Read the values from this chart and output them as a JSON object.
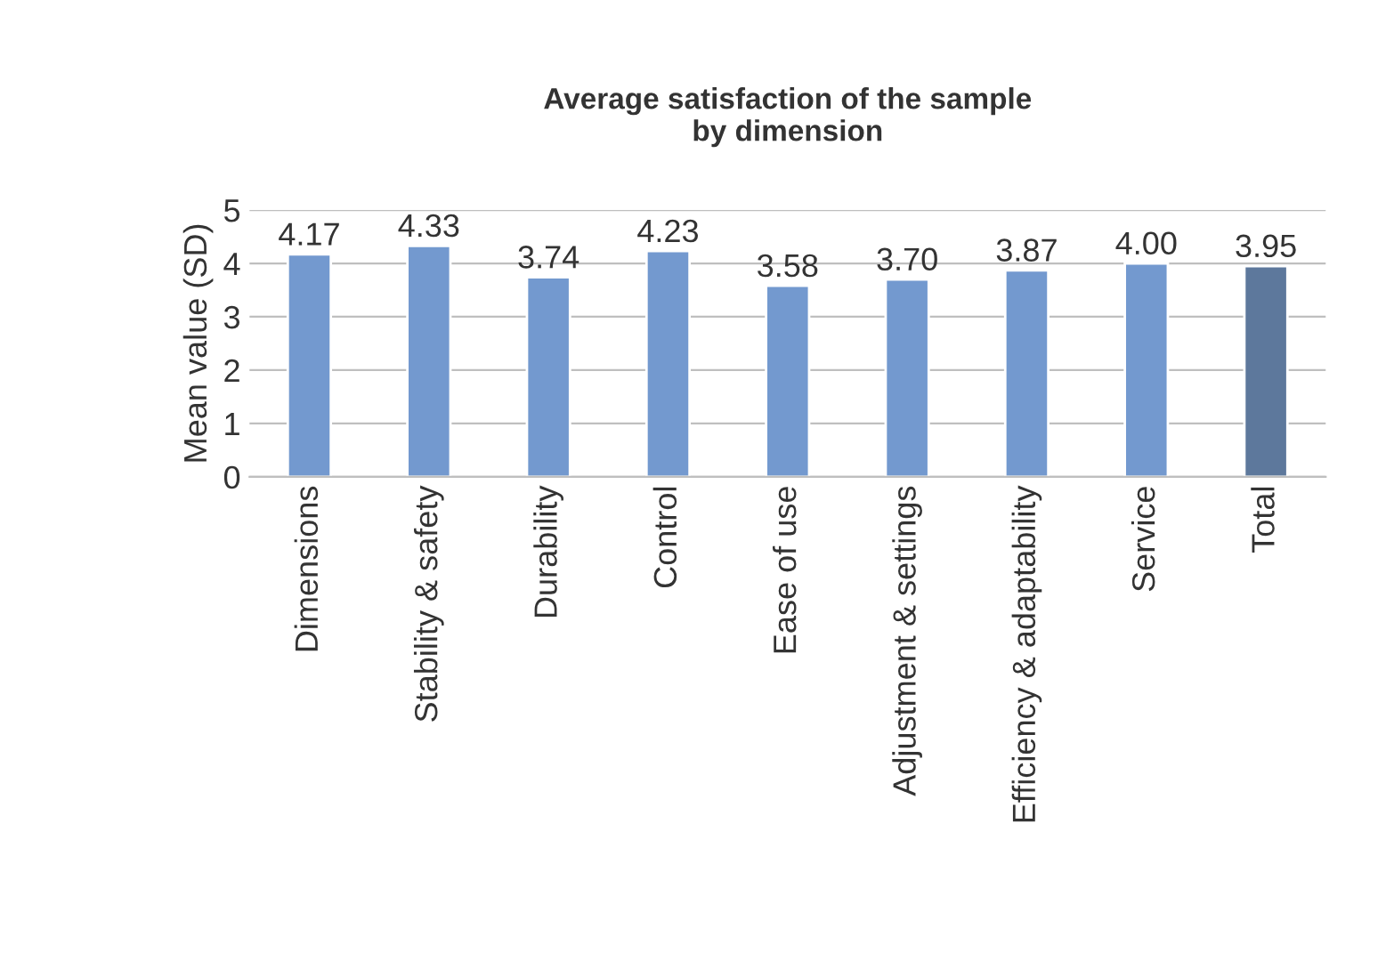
{
  "chart_data": {
    "type": "bar",
    "title": "Average satisfaction of the sample\nby dimension",
    "ylabel": "Mean value (SD)",
    "categories": [
      "Dimensions",
      "Stability & safety",
      "Durability",
      "Control",
      "Ease of use",
      "Adjustment & settings",
      "Efficiency & adaptability",
      "Service",
      "Total"
    ],
    "values": [
      4.17,
      4.33,
      3.74,
      4.23,
      3.58,
      3.7,
      3.87,
      4.0,
      3.95
    ],
    "value_labels": [
      "4.17",
      "4.33",
      "3.74",
      "4.23",
      "3.58",
      "3.70",
      "3.87",
      "4.00",
      "3.95"
    ],
    "colors": [
      "#7399cf",
      "#7399cf",
      "#7399cf",
      "#7399cf",
      "#7399cf",
      "#7399cf",
      "#7399cf",
      "#7399cf",
      "#5d789c"
    ],
    "ylim": [
      0,
      5
    ],
    "yticks": [
      0,
      1,
      2,
      3,
      4,
      5
    ],
    "grid": "y",
    "legend": false
  }
}
